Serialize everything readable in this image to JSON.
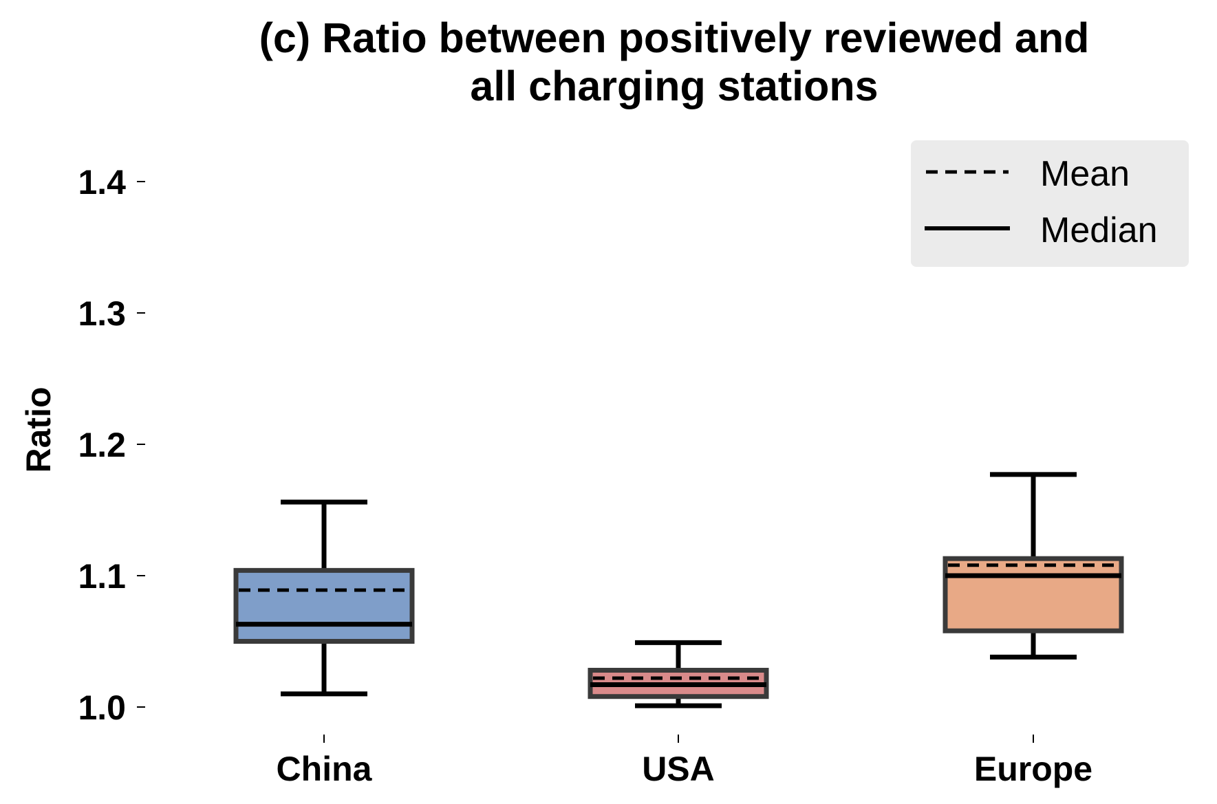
{
  "chart_data": {
    "type": "box",
    "title_lines": [
      "(c) Ratio between positively reviewed and",
      "all charging stations"
    ],
    "xlabel": "",
    "ylabel": "Ratio",
    "ylim": [
      0.97,
      1.43
    ],
    "yticks": [
      1.0,
      1.1,
      1.2,
      1.3,
      1.4
    ],
    "ytick_labels": [
      "1.0",
      "1.1",
      "1.2",
      "1.3",
      "1.4"
    ],
    "grid": false,
    "legend_position": "top-right",
    "legend": [
      {
        "label": "Mean",
        "style": "dashed"
      },
      {
        "label": "Median",
        "style": "solid"
      }
    ],
    "categories": [
      "China",
      "USA",
      "Europe"
    ],
    "boxes": [
      {
        "category": "China",
        "whisker_low": 1.01,
        "q1": 1.05,
        "median": 1.063,
        "mean": 1.089,
        "q3": 1.104,
        "whisker_high": 1.156,
        "color": "#7f9ec9"
      },
      {
        "category": "USA",
        "whisker_low": 1.001,
        "q1": 1.008,
        "median": 1.017,
        "mean": 1.022,
        "q3": 1.028,
        "whisker_high": 1.049,
        "color": "#d98a8a"
      },
      {
        "category": "Europe",
        "whisker_low": 1.038,
        "q1": 1.058,
        "median": 1.1,
        "mean": 1.108,
        "q3": 1.113,
        "whisker_high": 1.177,
        "color": "#e8a986"
      }
    ]
  }
}
